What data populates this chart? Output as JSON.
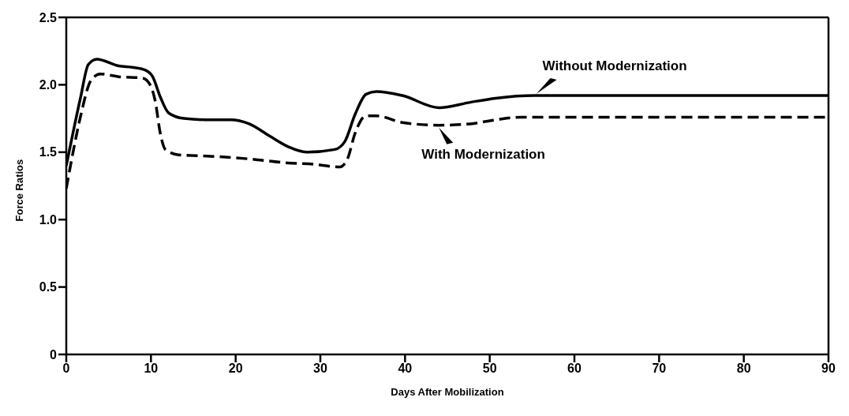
{
  "chart_data": {
    "type": "line",
    "xlabel": "Days After Mobilization",
    "ylabel": "Force Ratios",
    "xlim": [
      0,
      90
    ],
    "xticks": [
      0,
      10,
      20,
      30,
      40,
      50,
      60,
      70,
      80,
      90
    ],
    "ylim": [
      0,
      2.5
    ],
    "yticks": [
      0,
      0.5,
      {
        "value": 1,
        "label": "1.0"
      },
      1.5,
      {
        "value": 2,
        "label": "2.0"
      },
      2.5
    ],
    "grid": false,
    "legend": false,
    "marker": "none",
    "series": [
      {
        "color": "#000000",
        "line_style": "solid",
        "x": [
          0,
          1.7,
          2.6,
          3.6,
          6.2,
          7.8,
          9.3,
          10.2,
          11.1,
          12.1,
          13.9,
          17,
          19.4,
          21.6,
          24,
          26.2,
          28.4,
          31.7,
          32.9,
          34.1,
          35.4,
          36.6,
          39.7,
          44,
          47.7,
          50.7,
          55.3,
          70,
          90
        ],
        "values": [
          1.4,
          1.91,
          2.15,
          2.19,
          2.14,
          2.13,
          2.11,
          2.06,
          1.91,
          1.79,
          1.75,
          1.74,
          1.74,
          1.71,
          1.62,
          1.54,
          1.5,
          1.52,
          1.58,
          1.78,
          1.93,
          1.95,
          1.92,
          1.83,
          1.87,
          1.9,
          1.92,
          1.92,
          1.92
        ]
      },
      {
        "color": "#000000",
        "line_style": "dashed",
        "x": [
          0,
          0.8,
          1.7,
          2.9,
          4,
          6.2,
          9,
          9.9,
          10.5,
          11.1,
          11.7,
          13.3,
          17,
          21.6,
          26.2,
          29.3,
          32.3,
          33.2,
          34.1,
          35.4,
          36.6,
          39.7,
          44,
          47.7,
          50.7,
          53.7,
          70,
          90
        ],
        "values": [
          1.23,
          1.5,
          1.77,
          2.03,
          2.08,
          2.06,
          2.05,
          2.0,
          1.88,
          1.64,
          1.52,
          1.48,
          1.47,
          1.45,
          1.42,
          1.41,
          1.39,
          1.45,
          1.64,
          1.77,
          1.77,
          1.72,
          1.7,
          1.71,
          1.74,
          1.76,
          1.76,
          1.76
        ]
      }
    ],
    "annotations": [
      {
        "text": "Without Modernization",
        "x": 55.3,
        "y": 1.92
      },
      {
        "text": "With Modernization",
        "x": 44,
        "y": 1.7
      }
    ]
  }
}
